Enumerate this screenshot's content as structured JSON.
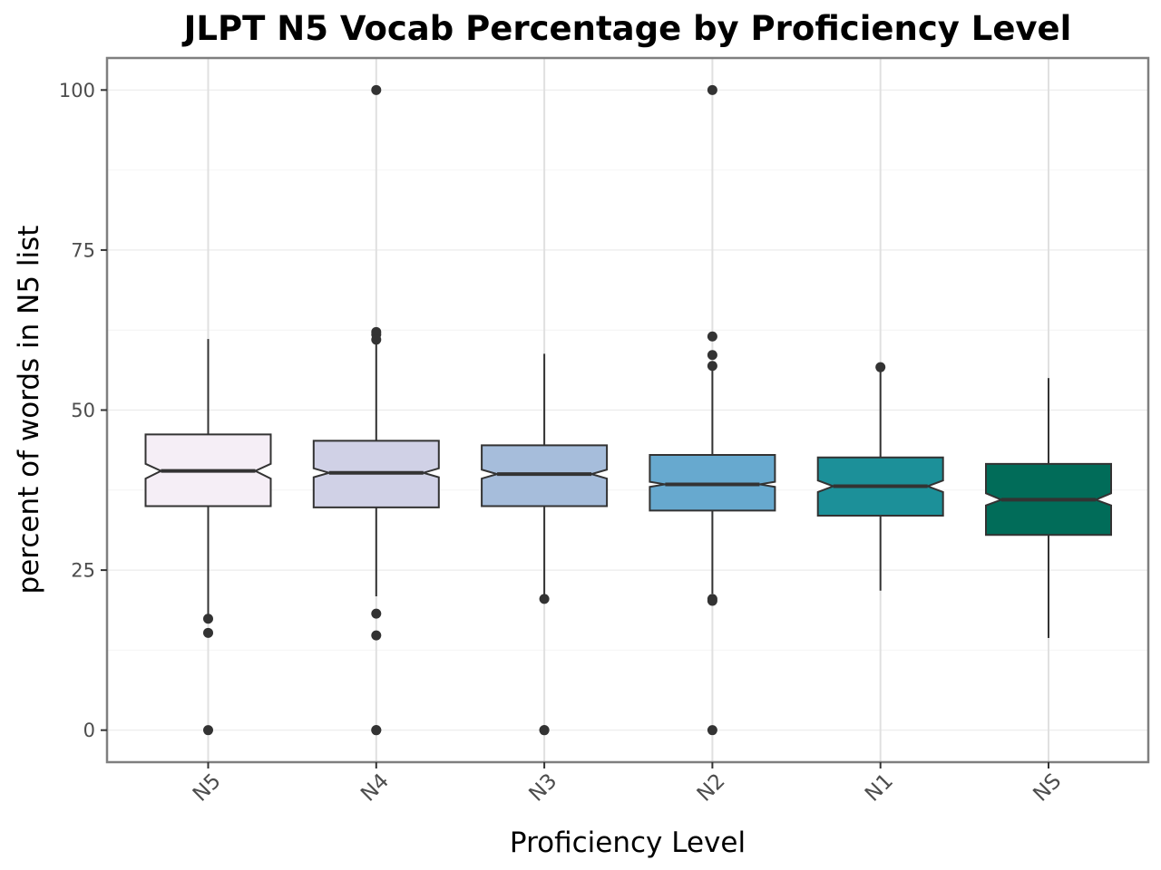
{
  "chart_data": {
    "type": "box",
    "title": "JLPT N5 Vocab Percentage by Proficiency Level",
    "xlabel": "Proficiency Level",
    "ylabel": "percent of words in N5 list",
    "ylim": [
      -5,
      105
    ],
    "yticks": [
      0,
      25,
      50,
      75,
      100
    ],
    "grid": true,
    "legend": "none",
    "notched": true,
    "categories": [
      "N5",
      "N4",
      "N3",
      "N2",
      "N1",
      "NS"
    ],
    "boxes": [
      {
        "label": "N5",
        "whisker_low": 17.5,
        "q1": 35,
        "median": 40.5,
        "q3": 46.2,
        "whisker_high": 61.1,
        "notch_low": 39.3,
        "notch_high": 41.6,
        "outliers": [
          17.4,
          15.2,
          0
        ],
        "color": "#f5eef6"
      },
      {
        "label": "N4",
        "whisker_low": 20.9,
        "q1": 34.8,
        "median": 40.2,
        "q3": 45.2,
        "whisker_high": 60.4,
        "notch_low": 39.5,
        "notch_high": 40.9,
        "outliers": [
          100,
          62.2,
          61.8,
          61,
          18.2,
          14.8,
          0,
          0
        ],
        "color": "#d0d1e6"
      },
      {
        "label": "N3",
        "whisker_low": 20.6,
        "q1": 35,
        "median": 40,
        "q3": 44.5,
        "whisker_high": 58.8,
        "notch_low": 39.3,
        "notch_high": 40.7,
        "outliers": [
          20.5,
          0,
          0
        ],
        "color": "#a6bddb"
      },
      {
        "label": "N2",
        "whisker_low": 21.3,
        "q1": 34.3,
        "median": 38.4,
        "q3": 43,
        "whisker_high": 56.5,
        "notch_low": 38,
        "notch_high": 38.8,
        "outliers": [
          100,
          61.5,
          58.6,
          56.9,
          20.5,
          20.2,
          0
        ],
        "color": "#67a9cf"
      },
      {
        "label": "N1",
        "whisker_low": 21.8,
        "q1": 33.5,
        "median": 38.1,
        "q3": 42.6,
        "whisker_high": 56.7,
        "notch_low": 37.2,
        "notch_high": 39,
        "outliers": [
          56.7
        ],
        "color": "#1c9099"
      },
      {
        "label": "NS",
        "whisker_low": 14.4,
        "q1": 30.5,
        "median": 36,
        "q3": 41.6,
        "whisker_high": 55,
        "notch_low": 35.1,
        "notch_high": 37,
        "outliers": [],
        "color": "#016c59"
      }
    ]
  }
}
